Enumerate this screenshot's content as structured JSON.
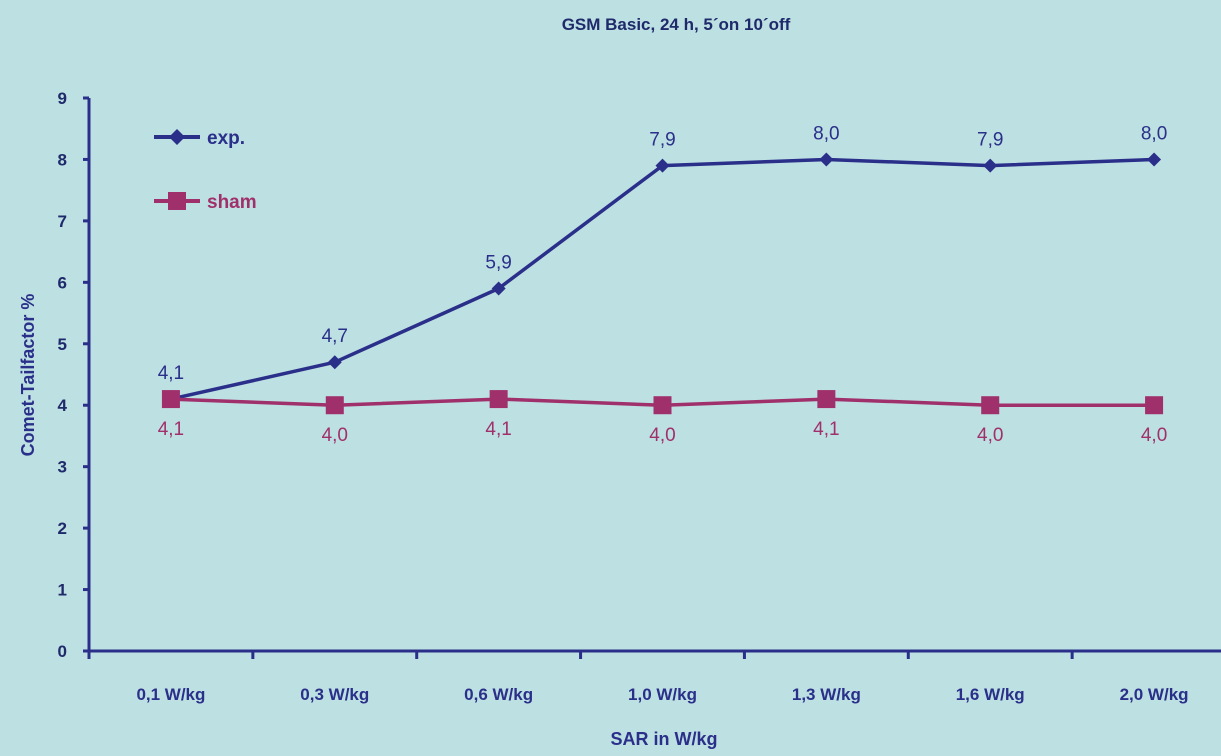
{
  "chart_data": {
    "type": "line",
    "title": "GSM Basic, 24 h, 5´on 10´off",
    "xlabel": "SAR in W/kg",
    "ylabel": "Comet-Tailfactor %",
    "categories": [
      "0,1 W/kg",
      "0,3 W/kg",
      "0,6 W/kg",
      "1,0 W/kg",
      "1,3 W/kg",
      "1,6 W/kg",
      "2,0 W/kg"
    ],
    "yticks": [
      "0",
      "1",
      "2",
      "3",
      "4",
      "5",
      "6",
      "7",
      "8",
      "9"
    ],
    "ylim": [
      0,
      9
    ],
    "grid": false,
    "legend_position": "top-left",
    "series": [
      {
        "name": "exp.",
        "values": [
          4.1,
          4.7,
          5.9,
          7.9,
          8.0,
          7.9,
          8.0
        ],
        "labels": [
          "4,1",
          "4,7",
          "5,9",
          "7,9",
          "8,0",
          "7,9",
          "8,0"
        ],
        "color": "#2a2f8a",
        "marker": "diamond",
        "label_position": "above"
      },
      {
        "name": "sham",
        "values": [
          4.1,
          4.0,
          4.1,
          4.0,
          4.1,
          4.0,
          4.0
        ],
        "labels": [
          "4,1",
          "4,0",
          "4,1",
          "4,0",
          "4,1",
          "4,0",
          "4,0"
        ],
        "color": "#a0306b",
        "marker": "square",
        "label_position": "below"
      }
    ]
  }
}
